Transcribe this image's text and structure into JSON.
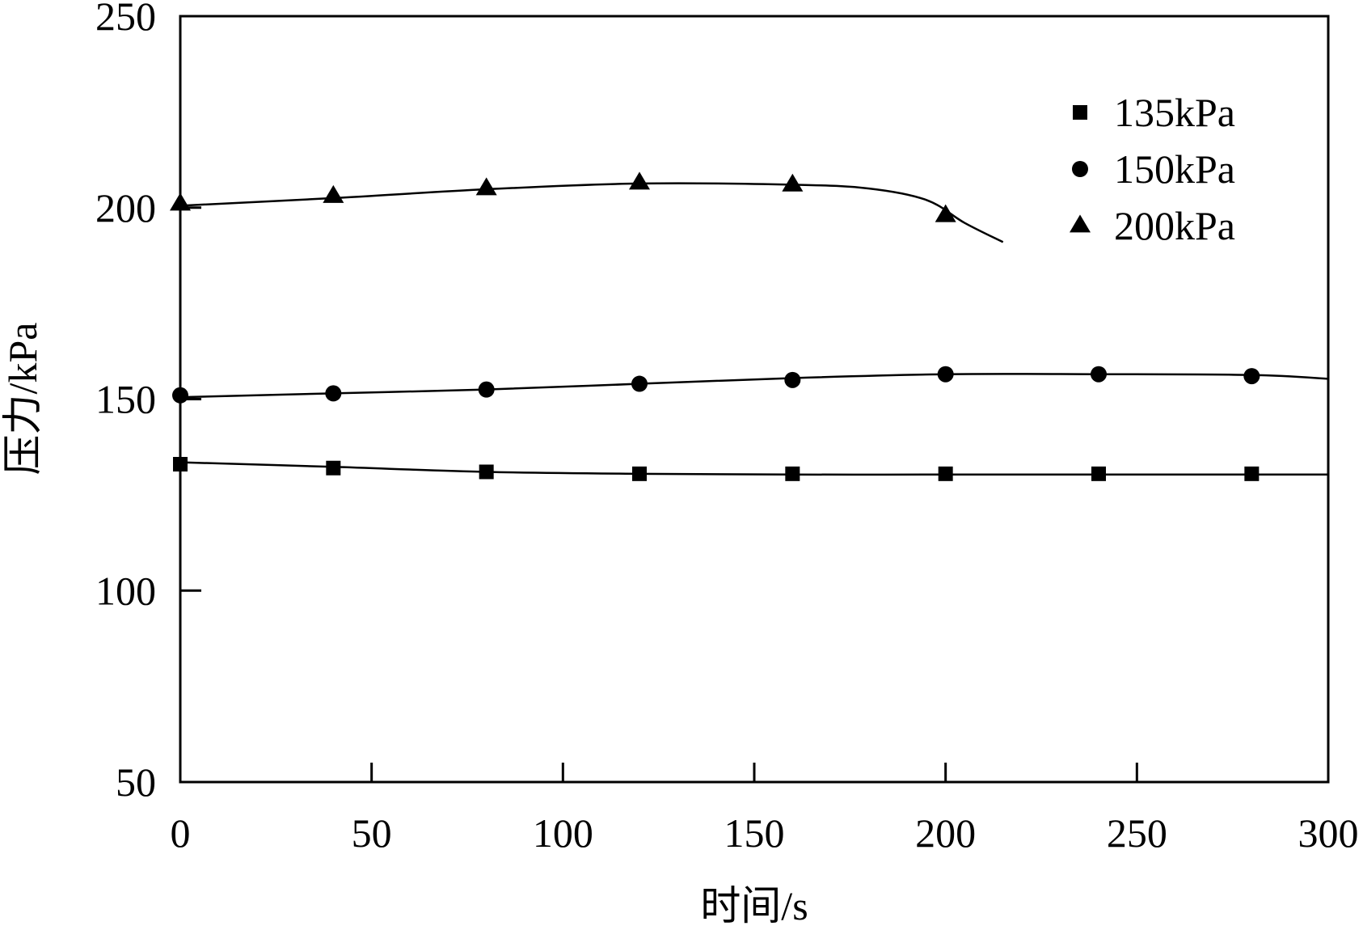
{
  "chart_data": {
    "type": "line",
    "title": "",
    "xlabel": "时间/s",
    "ylabel": "压力/kPa",
    "xlim": [
      0,
      300
    ],
    "ylim": [
      50,
      250
    ],
    "xticks": [
      0,
      50,
      100,
      150,
      200,
      250,
      300
    ],
    "yticks": [
      50,
      100,
      150,
      200,
      250
    ],
    "grid": false,
    "legend_position": "top-right",
    "line_color": "#000000",
    "series": [
      {
        "name": "135kPa",
        "marker": "square",
        "x": [
          0,
          40,
          80,
          120,
          160,
          200,
          240,
          280
        ],
        "y": [
          133,
          132,
          131,
          130.5,
          130.5,
          130.5,
          130.5,
          130.5
        ],
        "line_x": [
          0,
          40,
          80,
          120,
          160,
          200,
          240,
          280,
          300
        ],
        "line_y": [
          133.5,
          132.3,
          131,
          130.5,
          130.3,
          130.3,
          130.3,
          130.3,
          130.3
        ]
      },
      {
        "name": "150kPa",
        "marker": "circle",
        "x": [
          0,
          40,
          80,
          120,
          160,
          200,
          240,
          280
        ],
        "y": [
          151,
          151.5,
          152.5,
          154,
          155,
          156.5,
          156.5,
          156
        ],
        "line_x": [
          0,
          40,
          80,
          120,
          160,
          200,
          240,
          280,
          300
        ],
        "line_y": [
          150.5,
          151.5,
          152.5,
          154,
          155.5,
          156.5,
          156.5,
          156.3,
          155.3
        ]
      },
      {
        "name": "200kPa",
        "marker": "triangle",
        "x": [
          0,
          40,
          80,
          120,
          160,
          200
        ],
        "y": [
          201,
          203,
          205,
          206.5,
          206,
          198
        ],
        "line_x": [
          0,
          40,
          80,
          120,
          160,
          180,
          195,
          205,
          215
        ],
        "line_y": [
          200.5,
          202.5,
          204.8,
          206.3,
          206,
          205,
          202,
          196,
          191
        ]
      }
    ]
  }
}
